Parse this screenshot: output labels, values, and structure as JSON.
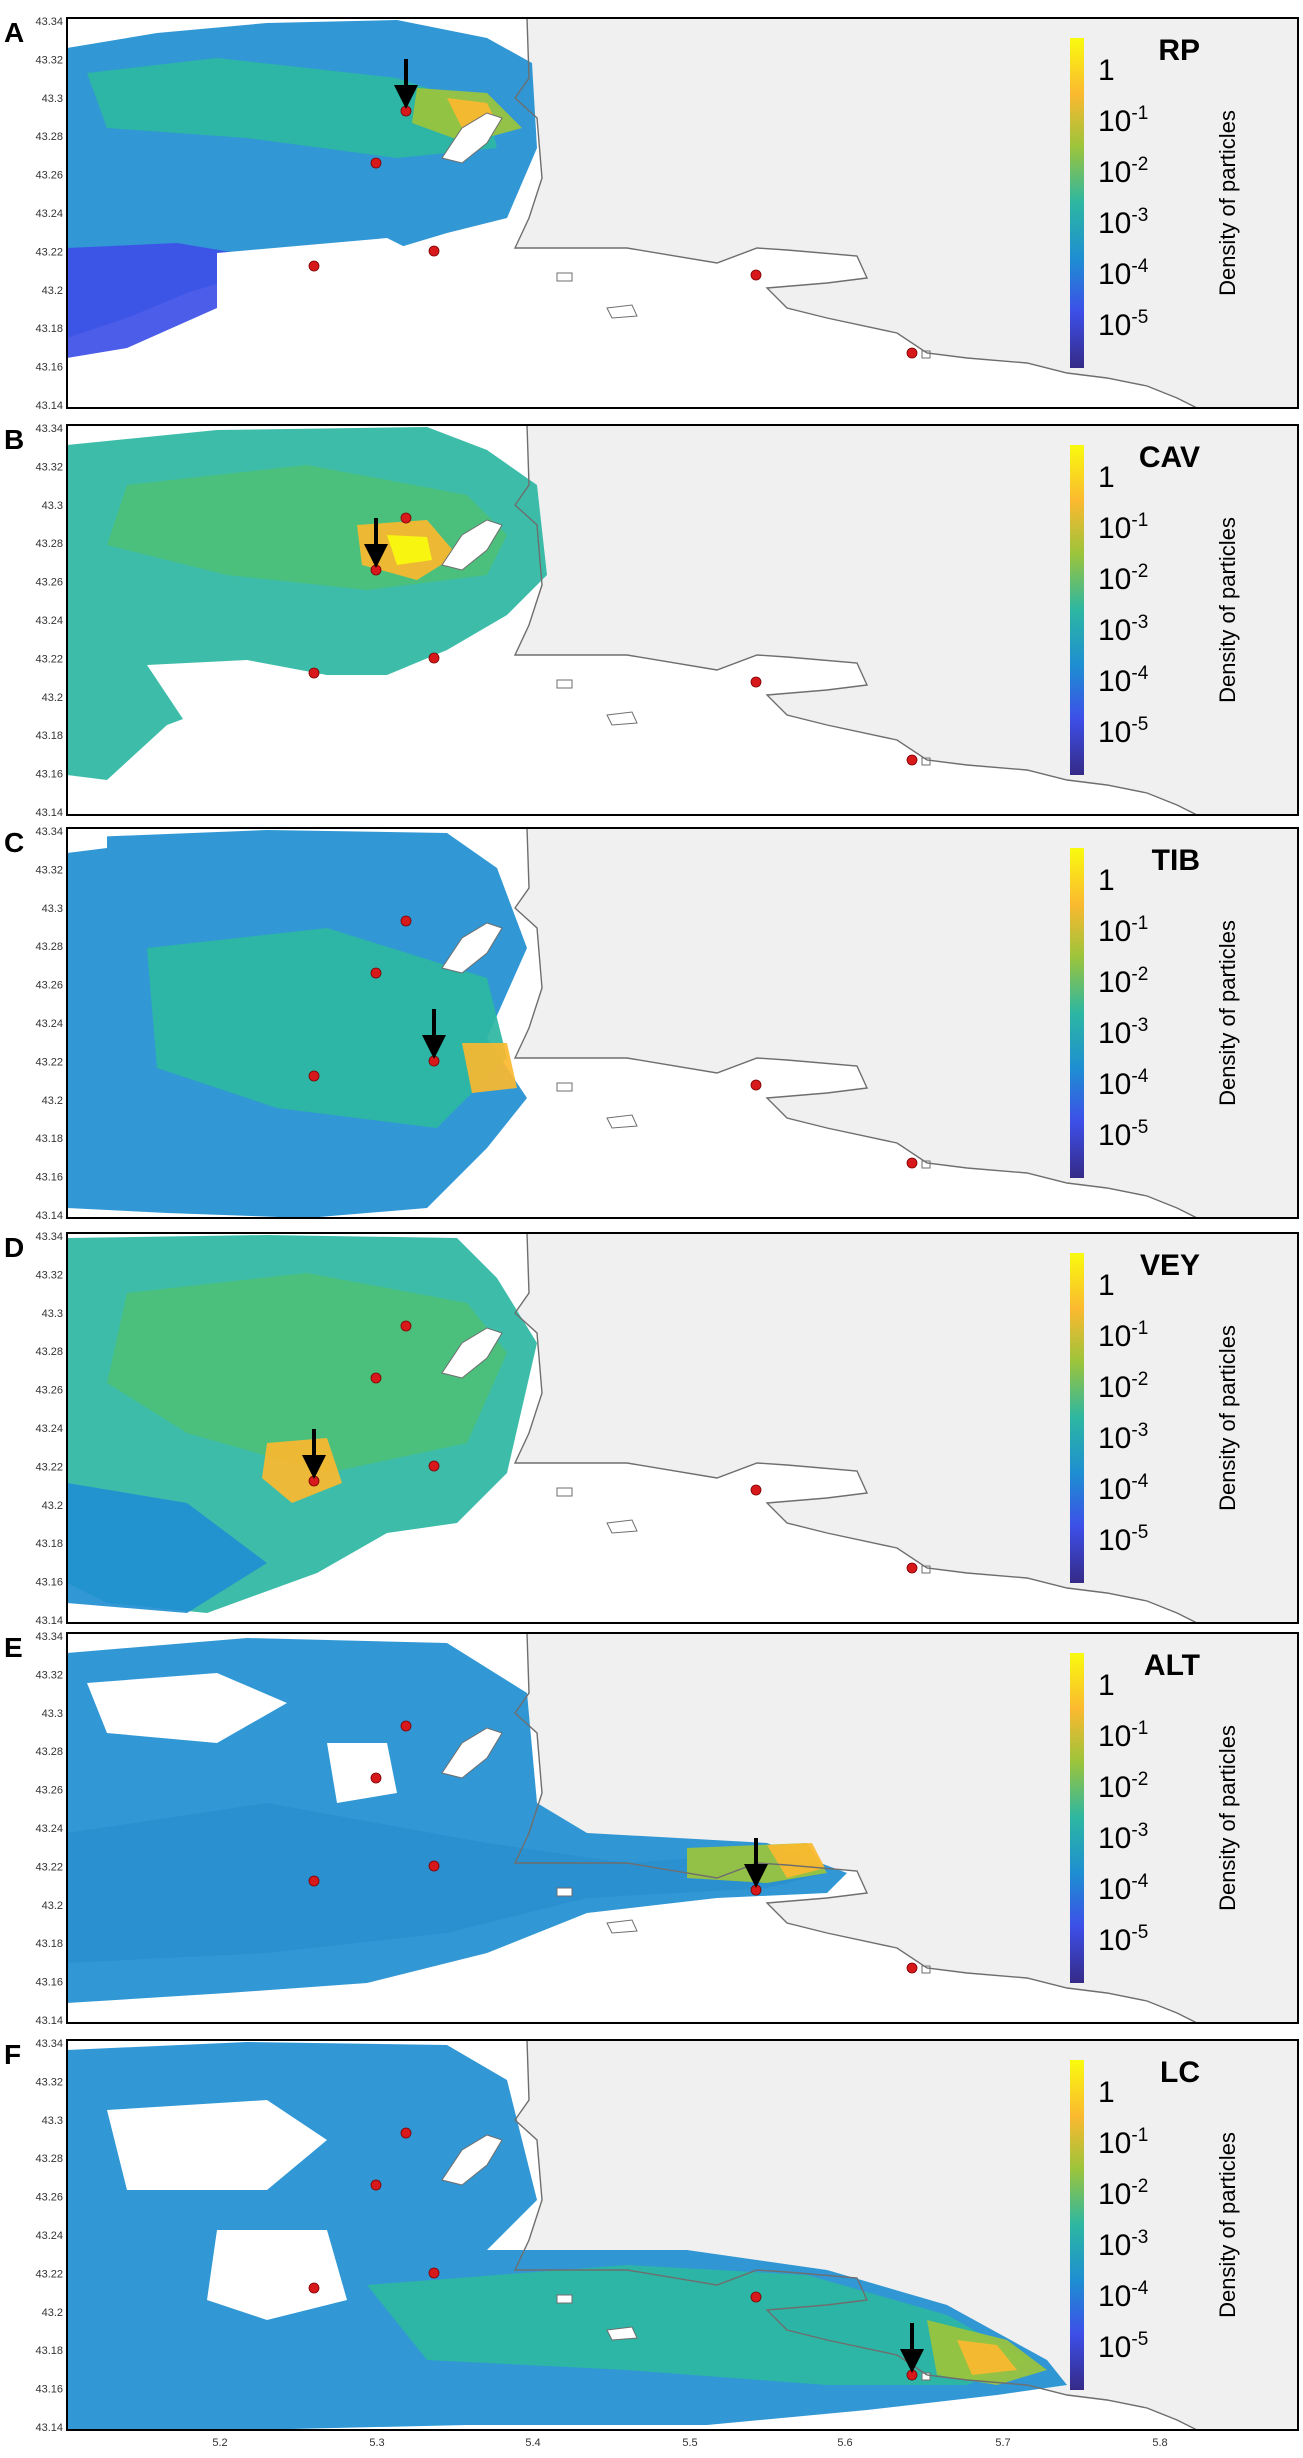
{
  "colorbar": {
    "title": "Density of particles",
    "ticks": [
      {
        "base": "1",
        "exp": ""
      },
      {
        "base": "10",
        "exp": "-1"
      },
      {
        "base": "10",
        "exp": "-2"
      },
      {
        "base": "10",
        "exp": "-3"
      },
      {
        "base": "10",
        "exp": "-4"
      },
      {
        "base": "10",
        "exp": "-5"
      }
    ],
    "colors": [
      "#f9fb0e",
      "#fbb92f",
      "#9cc43b",
      "#2cb7a2",
      "#1e8ed2",
      "#3d4fe8",
      "#352a87"
    ]
  },
  "axes": {
    "y_ticks": [
      "43.34",
      "43.32",
      "43.3",
      "43.28",
      "43.26",
      "43.24",
      "43.22",
      "43.2",
      "43.18",
      "43.16",
      "43.14"
    ],
    "x_ticks": [
      "5.2",
      "5.3",
      "5.4",
      "5.5",
      "5.6",
      "5.7",
      "5.8"
    ]
  },
  "panels": [
    {
      "letter": "A",
      "site": "RP"
    },
    {
      "letter": "B",
      "site": "CAV"
    },
    {
      "letter": "C",
      "site": "TIB"
    },
    {
      "letter": "D",
      "site": "VEY"
    },
    {
      "letter": "E",
      "site": "ALT"
    },
    {
      "letter": "F",
      "site": "LC"
    }
  ],
  "colors": {
    "land": "#f0f0f0",
    "sea_empty": "#ffffff",
    "coastline": "#6e6e6e",
    "release_point": "#d7191c",
    "arrow": "#000000"
  }
}
